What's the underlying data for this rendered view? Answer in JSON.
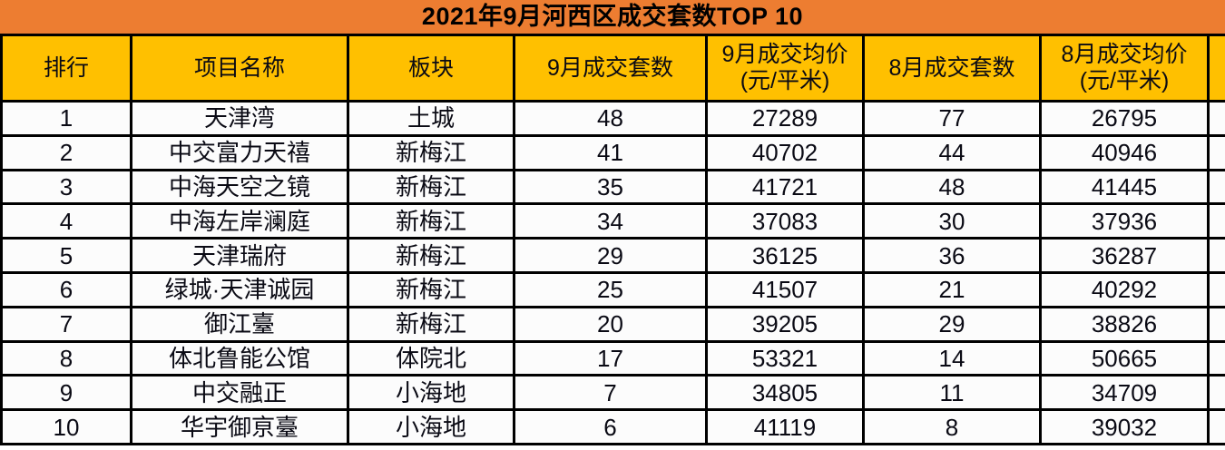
{
  "title": "2021年9月河西区成交套数TOP 10",
  "colors": {
    "title_bg": "#ED7D31",
    "header_bg": "#FFC000",
    "cell_bg": "#FCFCFC",
    "border": "#000000",
    "text": "#000000"
  },
  "table_headers": [
    "排行",
    "项目名称",
    "板块",
    "9月成交套数",
    "9月成交均价\n(元/平米)",
    "8月成交套数",
    "8月成交均价\n(元/平米)"
  ],
  "chart_data": {
    "type": "table",
    "title": "2021年9月河西区成交套数TOP 10",
    "columns": [
      "排行",
      "项目名称",
      "板块",
      "9月成交套数",
      "9月成交均价(元/平米)",
      "8月成交套数",
      "8月成交均价(元/平米)"
    ],
    "rows": [
      [
        1,
        "天津湾",
        "土城",
        48,
        27289,
        77,
        26795
      ],
      [
        2,
        "中交富力天禧",
        "新梅江",
        41,
        40702,
        44,
        40946
      ],
      [
        3,
        "中海天空之镜",
        "新梅江",
        35,
        41721,
        48,
        41445
      ],
      [
        4,
        "中海左岸澜庭",
        "新梅江",
        34,
        37083,
        30,
        37936
      ],
      [
        5,
        "天津瑞府",
        "新梅江",
        29,
        36125,
        36,
        36287
      ],
      [
        6,
        "绿城·天津诚园",
        "新梅江",
        25,
        41507,
        21,
        40292
      ],
      [
        7,
        "御江臺",
        "新梅江",
        20,
        39205,
        29,
        38826
      ],
      [
        8,
        "体北鲁能公馆",
        "体院北",
        17,
        53321,
        14,
        50665
      ],
      [
        9,
        "中交融正",
        "小海地",
        7,
        34805,
        11,
        34709
      ],
      [
        10,
        "华宇御亰臺",
        "小海地",
        6,
        41119,
        8,
        39032
      ]
    ]
  }
}
